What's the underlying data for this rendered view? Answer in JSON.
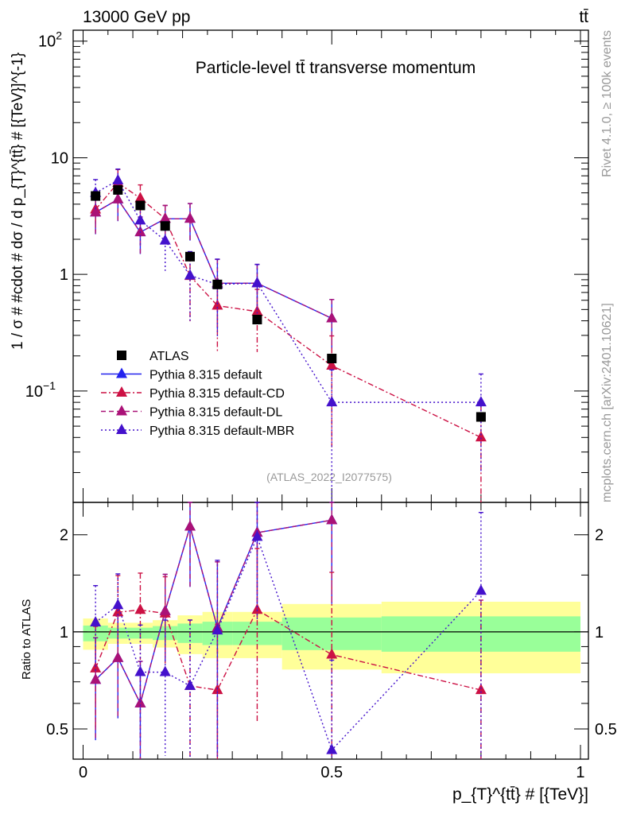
{
  "header": {
    "energy": "13000 GeV pp",
    "process": "tt̄"
  },
  "side_text": {
    "rivet": "Rivet 4.1.0, ≥ 100k events",
    "mcplots": "mcplots.cern.ch [arXiv:2401.10621]"
  },
  "colors": {
    "atlas": "#000000",
    "default": "#2222ee",
    "cd": "#cc1144",
    "dl": "#aa1177",
    "mbr": "#4411cc",
    "band_inner": "#99ff99",
    "band_outer": "#ffff99"
  },
  "chart_data": [
    {
      "type": "line",
      "title": "Particle-level tt̄ transverse momentum",
      "analysis": "(ATLAS_2022_I2077575)",
      "ylabel": "1 / σ # #cdot # dσ / d p_{T}^{tt̄} # [{TeV}]^{-1}",
      "yscale": "log",
      "xlim": [
        -0.02,
        1.016
      ],
      "ylim": [
        0.0111,
        124
      ],
      "yticks": [
        {
          "v": 0.1,
          "label": "10",
          "sup": "−1"
        },
        {
          "v": 1,
          "label": "1",
          "sup": ""
        },
        {
          "v": 10,
          "label": "10",
          "sup": ""
        },
        {
          "v": 100,
          "label": "10",
          "sup": "2"
        }
      ],
      "bin_edges": [
        0,
        0.05,
        0.09,
        0.14,
        0.19,
        0.24,
        0.3,
        0.4,
        0.6,
        1.0
      ],
      "x": [
        0.025,
        0.07,
        0.115,
        0.165,
        0.215,
        0.27,
        0.35,
        0.5,
        0.8
      ],
      "legend_position": "lower-left",
      "series": [
        {
          "key": "atlas",
          "name": "ATLAS",
          "style": "data",
          "values": [
            4.7,
            5.3,
            3.9,
            2.6,
            1.42,
            0.82,
            0.41,
            0.19,
            0.06
          ]
        },
        {
          "key": "default",
          "name": "Pythia 8.315 default",
          "style": "solid",
          "values": [
            3.4,
            4.4,
            2.3,
            3.0,
            3.0,
            0.84,
            0.84,
            0.42,
            null
          ],
          "rel_err": [
            0.35,
            0.35,
            0.35,
            0.3,
            0.35,
            0.6,
            0.45,
            0.45,
            0
          ]
        },
        {
          "key": "cd",
          "name": "Pythia 8.315 default-CD",
          "style": "dashdot",
          "values": [
            3.6,
            6.1,
            4.5,
            3.0,
            0.97,
            0.54,
            0.48,
            0.165,
            0.04
          ],
          "rel_err": [
            0.35,
            0.3,
            0.3,
            0.3,
            0.6,
            0.6,
            0.55,
            0.8,
            0.9
          ]
        },
        {
          "key": "dl",
          "name": "Pythia 8.315 default-DL",
          "style": "dashed",
          "values": [
            3.4,
            4.4,
            2.3,
            3.0,
            3.0,
            0.84,
            0.84,
            0.42,
            null
          ],
          "rel_err": [
            0.35,
            0.35,
            0.35,
            0.3,
            0.35,
            0.6,
            0.45,
            0.45,
            0
          ]
        },
        {
          "key": "mbr",
          "name": "Pythia 8.315 default-MBR",
          "style": "dotted",
          "values": [
            5.0,
            6.4,
            2.9,
            1.95,
            0.98,
            0.82,
            0.84,
            0.08,
            0.08
          ],
          "rel_err": [
            0.3,
            0.25,
            0.4,
            0.45,
            0.6,
            0.65,
            0.45,
            0.9,
            0.75
          ]
        }
      ]
    },
    {
      "type": "line",
      "ylabel": "Ratio to ATLAS",
      "xlabel": "p_{T}^{tt̄} # [{TeV}]",
      "yscale": "log",
      "xlim": [
        -0.02,
        1.016
      ],
      "ylim": [
        0.403,
        2.52
      ],
      "yticks": [
        {
          "v": 0.5,
          "label": "0.5"
        },
        {
          "v": 1,
          "label": "1"
        },
        {
          "v": 2,
          "label": "2"
        }
      ],
      "xticks": [
        {
          "v": 0,
          "label": "0"
        },
        {
          "v": 0.5,
          "label": "0.5"
        },
        {
          "v": 1,
          "label": "1"
        }
      ],
      "bands": {
        "inner": [
          [
            0.935,
            1.046
          ],
          [
            0.953,
            1.03
          ],
          [
            0.953,
            1.03
          ],
          [
            0.943,
            1.042
          ],
          [
            0.924,
            1.061
          ],
          [
            0.91,
            1.075
          ],
          [
            0.91,
            1.075
          ],
          [
            0.878,
            1.108
          ],
          [
            0.868,
            1.117
          ]
        ],
        "outer": [
          [
            0.88,
            1.1
          ],
          [
            0.918,
            1.067
          ],
          [
            0.918,
            1.067
          ],
          [
            0.894,
            1.087
          ],
          [
            0.853,
            1.125
          ],
          [
            0.829,
            1.153
          ],
          [
            0.829,
            1.153
          ],
          [
            0.764,
            1.22
          ],
          [
            0.744,
            1.24
          ]
        ]
      },
      "series": [
        {
          "key": "default",
          "values": [
            0.71,
            0.83,
            0.6,
            1.16,
            2.12,
            1.03,
            2.03,
            2.22,
            null
          ]
        },
        {
          "key": "cd",
          "values": [
            0.77,
            1.15,
            1.17,
            1.14,
            0.68,
            0.66,
            1.17,
            0.85,
            0.66
          ]
        },
        {
          "key": "dl",
          "values": [
            0.71,
            0.83,
            0.6,
            1.16,
            2.12,
            1.03,
            2.03,
            2.22,
            null
          ]
        },
        {
          "key": "mbr",
          "values": [
            1.07,
            1.21,
            0.75,
            0.75,
            0.68,
            1.01,
            1.97,
            0.43,
            1.34
          ]
        }
      ]
    }
  ]
}
